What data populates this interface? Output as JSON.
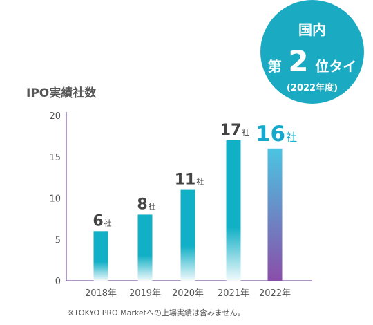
{
  "badge": {
    "line1": "国内",
    "line2_prefix": "第",
    "line2_number": "2",
    "line2_suffix": "位タイ",
    "line3": "(2022年度)",
    "color": "#1aaac2"
  },
  "footnote": "※TOKYO PRO Marketへの上場実績は含みません。",
  "chart_data": {
    "type": "bar",
    "title": "IPO実績社数",
    "categories": [
      "2018年",
      "2019年",
      "2020年",
      "2021年",
      "2022年"
    ],
    "values": [
      6,
      8,
      11,
      17,
      16
    ],
    "value_labels": [
      "6",
      "8",
      "11",
      "17",
      "16"
    ],
    "unit_label": "社",
    "ylim": [
      0,
      20
    ],
    "yticks": [
      0,
      5,
      10,
      15,
      20
    ],
    "grid": false,
    "colors": {
      "bar_top": "#12b0c6",
      "bar_fade": "#f2fafc",
      "highlight_top": "#4bc4e2",
      "highlight_bottom": "#8a4ea8",
      "highlight_label": "#17a8cc",
      "label": "#444444",
      "axis": "#7b5aa6"
    },
    "highlight_index": 4
  }
}
